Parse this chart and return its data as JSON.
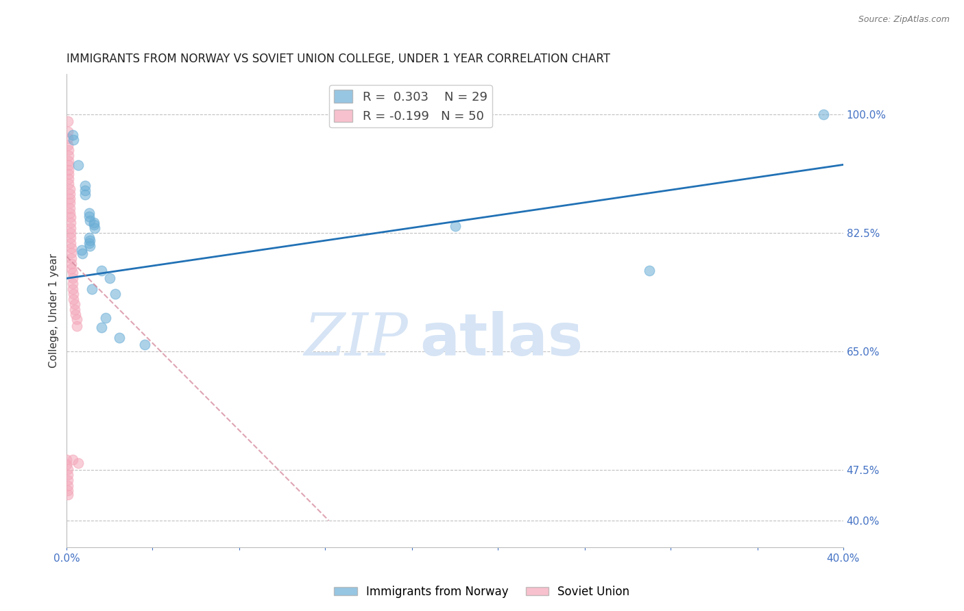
{
  "title": "IMMIGRANTS FROM NORWAY VS SOVIET UNION COLLEGE, UNDER 1 YEAR CORRELATION CHART",
  "source": "Source: ZipAtlas.com",
  "ylabel": "College, Under 1 year",
  "watermark_zip": "ZIP",
  "watermark_atlas": "atlas",
  "legend_entries": [
    {
      "label": "Immigrants from Norway",
      "color": "#6baed6",
      "R": "0.303",
      "N": "29"
    },
    {
      "label": "Soviet Union",
      "color": "#f4a7b9",
      "R": "-0.199",
      "N": "50"
    }
  ],
  "norway_scatter": [
    [
      0.003,
      0.97
    ],
    [
      0.0035,
      0.963
    ],
    [
      0.006,
      0.925
    ],
    [
      0.0095,
      0.895
    ],
    [
      0.0095,
      0.888
    ],
    [
      0.0095,
      0.882
    ],
    [
      0.0115,
      0.855
    ],
    [
      0.0115,
      0.85
    ],
    [
      0.012,
      0.843
    ],
    [
      0.014,
      0.84
    ],
    [
      0.014,
      0.837
    ],
    [
      0.0145,
      0.832
    ],
    [
      0.0115,
      0.818
    ],
    [
      0.012,
      0.814
    ],
    [
      0.0115,
      0.81
    ],
    [
      0.012,
      0.806
    ],
    [
      0.0075,
      0.8
    ],
    [
      0.008,
      0.795
    ],
    [
      0.018,
      0.77
    ],
    [
      0.022,
      0.758
    ],
    [
      0.013,
      0.742
    ],
    [
      0.025,
      0.735
    ],
    [
      0.02,
      0.7
    ],
    [
      0.018,
      0.685
    ],
    [
      0.027,
      0.67
    ],
    [
      0.04,
      0.66
    ],
    [
      0.2,
      0.835
    ],
    [
      0.3,
      0.77
    ],
    [
      0.39,
      1.0
    ]
  ],
  "soviet_scatter": [
    [
      0.0005,
      0.99
    ],
    [
      0.0005,
      0.975
    ],
    [
      0.0005,
      0.965
    ],
    [
      0.0005,
      0.955
    ],
    [
      0.001,
      0.948
    ],
    [
      0.001,
      0.94
    ],
    [
      0.001,
      0.932
    ],
    [
      0.001,
      0.925
    ],
    [
      0.001,
      0.918
    ],
    [
      0.001,
      0.912
    ],
    [
      0.001,
      0.905
    ],
    [
      0.001,
      0.898
    ],
    [
      0.0015,
      0.89
    ],
    [
      0.0015,
      0.883
    ],
    [
      0.0015,
      0.876
    ],
    [
      0.0015,
      0.87
    ],
    [
      0.0015,
      0.862
    ],
    [
      0.0015,
      0.855
    ],
    [
      0.002,
      0.848
    ],
    [
      0.002,
      0.84
    ],
    [
      0.002,
      0.832
    ],
    [
      0.002,
      0.825
    ],
    [
      0.002,
      0.818
    ],
    [
      0.002,
      0.81
    ],
    [
      0.0025,
      0.803
    ],
    [
      0.0025,
      0.796
    ],
    [
      0.0025,
      0.788
    ],
    [
      0.0025,
      0.78
    ],
    [
      0.0025,
      0.773
    ],
    [
      0.003,
      0.766
    ],
    [
      0.003,
      0.758
    ],
    [
      0.003,
      0.75
    ],
    [
      0.003,
      0.742
    ],
    [
      0.0035,
      0.735
    ],
    [
      0.0035,
      0.727
    ],
    [
      0.004,
      0.72
    ],
    [
      0.004,
      0.712
    ],
    [
      0.0045,
      0.705
    ],
    [
      0.005,
      0.698
    ],
    [
      0.005,
      0.688
    ],
    [
      0.0,
      0.49
    ],
    [
      0.0,
      0.483
    ],
    [
      0.0005,
      0.476
    ],
    [
      0.0005,
      0.468
    ],
    [
      0.0005,
      0.46
    ],
    [
      0.0005,
      0.452
    ],
    [
      0.0005,
      0.445
    ],
    [
      0.0005,
      0.438
    ],
    [
      0.003,
      0.49
    ],
    [
      0.006,
      0.485
    ]
  ],
  "norway_line": {
    "x0": 0.0,
    "y0": 0.758,
    "x1": 0.4,
    "y1": 0.926
  },
  "soviet_line": {
    "x0": 0.0,
    "y0": 0.79,
    "x1": 0.135,
    "y1": 0.4
  },
  "xlim": [
    0.0,
    0.4
  ],
  "ylim": [
    0.36,
    1.06
  ],
  "ytick_vals": [
    0.4,
    0.475,
    0.65,
    0.825,
    1.0
  ],
  "ytick_labels": [
    "40.0%",
    "47.5%",
    "65.0%",
    "82.5%",
    "100.0%"
  ],
  "xtick_vals": [
    0.0,
    0.044,
    0.089,
    0.133,
    0.178,
    0.222,
    0.267,
    0.311,
    0.356,
    0.4
  ],
  "xtick_labels": [
    "0.0%",
    "",
    "",
    "",
    "",
    "",
    "",
    "",
    "",
    "40.0%"
  ],
  "background_color": "#ffffff",
  "scatter_size": 110,
  "norway_color": "#6baed6",
  "soviet_color": "#f4a7b9",
  "norway_line_color": "#2171b5",
  "soviet_line_color": "#d4869a",
  "title_fontsize": 12,
  "axis_label_color": "#4472c4",
  "grid_color": "#c0c0c0",
  "watermark_color": "#d6e4f5"
}
